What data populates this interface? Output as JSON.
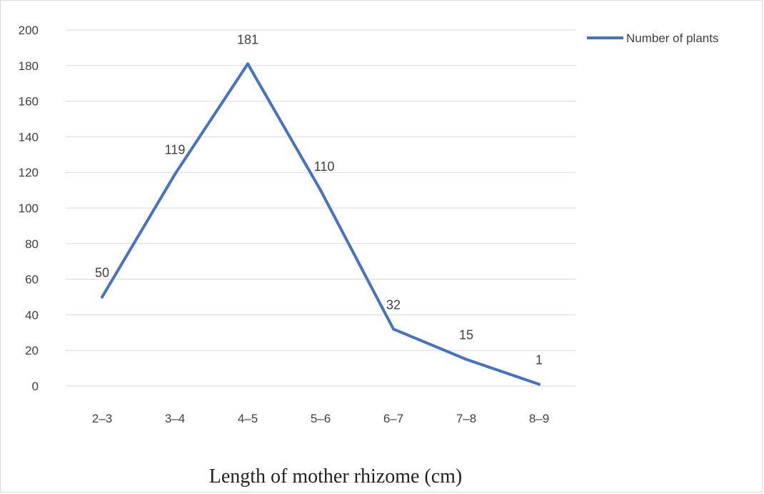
{
  "chart_data": {
    "type": "line",
    "title": "",
    "xlabel": "Length of mother rhizome (cm)",
    "ylabel": "",
    "categories": [
      "2–3",
      "3–4",
      "4–5",
      "5–6",
      "6–7",
      "7–8",
      "8–9"
    ],
    "series": [
      {
        "name": "Number of plants",
        "values": [
          50,
          119,
          181,
          110,
          32,
          15,
          1
        ],
        "data_labels": [
          "50",
          "119",
          "181",
          "110",
          "32",
          "15",
          "1"
        ],
        "color": "#4472c4"
      }
    ],
    "ylim": [
      0,
      200
    ],
    "yticks": [
      "0",
      "20",
      "40",
      "60",
      "80",
      "100",
      "120",
      "140",
      "160",
      "180",
      "200"
    ],
    "grid": true,
    "legend_position": "top-right"
  }
}
